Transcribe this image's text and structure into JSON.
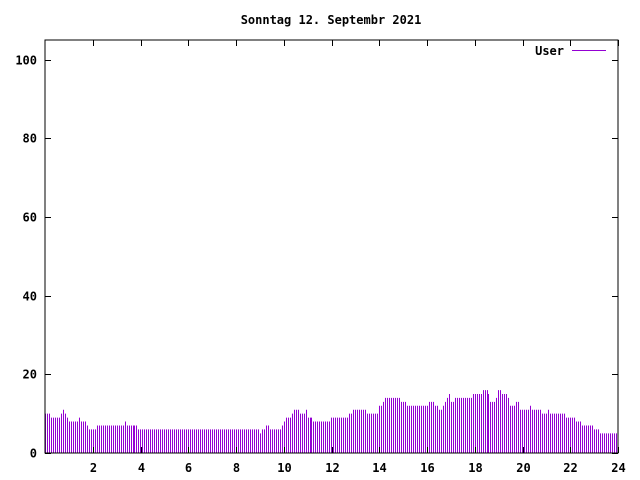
{
  "chart_data": {
    "type": "bar",
    "title": "Sonntag 12. Septembr 2021",
    "xlabel": "",
    "ylabel": "",
    "xlim": [
      0,
      24
    ],
    "ylim": [
      0,
      105
    ],
    "x_ticks": [
      2,
      4,
      6,
      8,
      10,
      12,
      14,
      16,
      18,
      20,
      22,
      24
    ],
    "x_tick_labels": [
      "2",
      "4",
      "6",
      "8",
      "10",
      "12",
      "14",
      "16",
      "18",
      "20",
      "22",
      "24"
    ],
    "y_ticks": [
      0,
      20,
      40,
      60,
      80,
      100
    ],
    "y_tick_labels": [
      "0",
      "20",
      "40",
      "60",
      "80",
      "100"
    ],
    "grid": false,
    "legend_position": "top-right",
    "colors": {
      "series": "#9400d3",
      "axis": "#000000",
      "background": "#ffffff"
    },
    "series": [
      {
        "name": "User",
        "bin_hours": 0.0833,
        "values": [
          10,
          10,
          10,
          9,
          9,
          9,
          9,
          9,
          10,
          11,
          10,
          9,
          8,
          8,
          8,
          8,
          8,
          9,
          8,
          8,
          8,
          7,
          6,
          6,
          6,
          6,
          7,
          7,
          7,
          7,
          7,
          7,
          7,
          7,
          7,
          7,
          7,
          7,
          7,
          7,
          8,
          7,
          7,
          7,
          7,
          7,
          7,
          6,
          6,
          6,
          6,
          6,
          6,
          6,
          6,
          6,
          6,
          6,
          6,
          6,
          6,
          6,
          6,
          6,
          6,
          6,
          6,
          6,
          6,
          6,
          6,
          6,
          6,
          6,
          6,
          6,
          6,
          6,
          6,
          6,
          6,
          6,
          6,
          6,
          6,
          6,
          6,
          6,
          6,
          6,
          6,
          6,
          6,
          6,
          6,
          6,
          6,
          6,
          6,
          6,
          6,
          6,
          6,
          6,
          6,
          6,
          6,
          6,
          5,
          6,
          6,
          7,
          7,
          6,
          6,
          6,
          6,
          6,
          6,
          7,
          8,
          9,
          9,
          9,
          10,
          11,
          11,
          11,
          10,
          10,
          10,
          11,
          9,
          9,
          9,
          8,
          8,
          8,
          8,
          8,
          8,
          8,
          8,
          8,
          9,
          9,
          9,
          9,
          9,
          9,
          9,
          9,
          9,
          10,
          10,
          11,
          11,
          11,
          11,
          11,
          11,
          11,
          10,
          10,
          10,
          10,
          10,
          10,
          12,
          12,
          13,
          14,
          14,
          14,
          14,
          14,
          14,
          14,
          14,
          13,
          13,
          13,
          12,
          12,
          12,
          12,
          12,
          12,
          12,
          12,
          12,
          12,
          12,
          13,
          13,
          13,
          12,
          12,
          11,
          11,
          12,
          13,
          14,
          15,
          13,
          13,
          14,
          14,
          14,
          14,
          14,
          14,
          14,
          14,
          14,
          15,
          15,
          15,
          15,
          15,
          16,
          16,
          16,
          15,
          13,
          13,
          13,
          14,
          16,
          16,
          15,
          15,
          15,
          14,
          12,
          12,
          12,
          13,
          13,
          11,
          11,
          11,
          11,
          11,
          12,
          11,
          11,
          11,
          11,
          11,
          10,
          10,
          10,
          11,
          10,
          10,
          10,
          10,
          10,
          10,
          10,
          10,
          9,
          9,
          9,
          9,
          9,
          8,
          8,
          8,
          7,
          7,
          7,
          7,
          7,
          7,
          6,
          6,
          6,
          5,
          5,
          5,
          5,
          5,
          5,
          5,
          5,
          5
        ]
      }
    ]
  }
}
